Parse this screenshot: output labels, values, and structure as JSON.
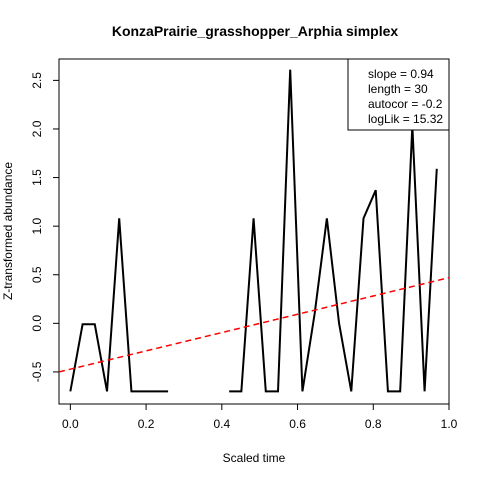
{
  "chart_data": {
    "type": "line",
    "title": "KonzaPrairie_grasshopper_Arphia simplex",
    "xlabel": "Scaled time",
    "ylabel": "Z-transformed abundance",
    "xlim": [
      -0.03,
      1.0
    ],
    "ylim": [
      -0.83,
      2.72
    ],
    "xticks": [
      0.0,
      0.2,
      0.4,
      0.6,
      0.8,
      1.0
    ],
    "xtick_labels": [
      "0.0",
      "0.2",
      "0.4",
      "0.6",
      "0.8",
      "1.0"
    ],
    "yticks": [
      -0.5,
      0.0,
      0.5,
      1.0,
      1.5,
      2.0,
      2.5
    ],
    "ytick_labels": [
      "-0.5",
      "0.0",
      "0.5",
      "1.0",
      "1.5",
      "2.0",
      "2.5"
    ],
    "grid": false,
    "series": [
      {
        "color": "#000000",
        "x": [
          0.0,
          0.0323,
          0.0645,
          0.0968,
          0.129,
          0.1613,
          0.1935,
          0.2258,
          0.2581,
          0.2903,
          0.3226,
          0.3548,
          0.3871,
          0.4194,
          0.4516,
          0.4839,
          0.5161,
          0.5484,
          0.5806,
          0.6129,
          0.6452,
          0.6774,
          0.7097,
          0.7419,
          0.7742,
          0.8065,
          0.8387,
          0.871,
          0.9032,
          0.9355,
          0.9677
        ],
        "y": [
          -0.7,
          -0.01,
          -0.01,
          -0.7,
          1.08,
          -0.7,
          -0.7,
          -0.7,
          -0.7,
          null,
          null,
          null,
          null,
          -0.7,
          -0.7,
          1.08,
          -0.7,
          -0.7,
          2.61,
          -0.7,
          0.1,
          1.08,
          0.0,
          -0.7,
          1.08,
          1.37,
          -0.7,
          -0.7,
          2.03,
          -0.7,
          1.59
        ]
      },
      {
        "color": "#ff0000",
        "dashed": true,
        "x": [
          -0.03,
          1.0
        ],
        "y": [
          -0.5,
          0.47
        ]
      }
    ],
    "legend": {
      "position": "top-right",
      "entries": [
        "slope = 0.94",
        "length = 30",
        "autocor = -0.2",
        "logLik = 15.32"
      ]
    }
  }
}
